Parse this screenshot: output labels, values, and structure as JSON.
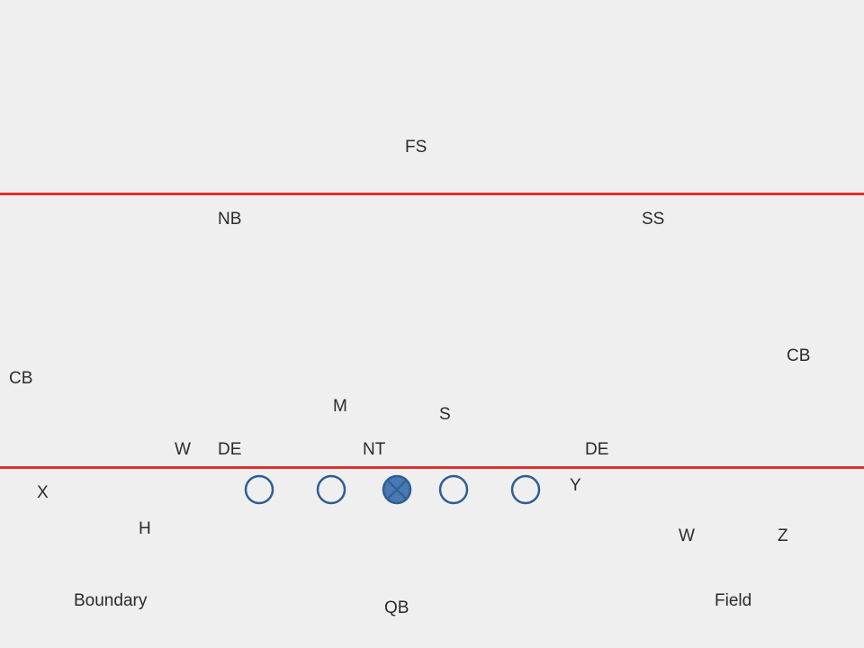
{
  "colors": {
    "background": "#efefef",
    "boundary_line": "#e03030",
    "player_stroke": "#2d5e94",
    "center_fill": "#4a78b0",
    "text": "#2b2b2b"
  },
  "defense": {
    "fs": "FS",
    "nb": "NB",
    "ss": "SS",
    "cb_left": "CB",
    "cb_right": "CB",
    "m": "M",
    "s": "S",
    "w": "W",
    "de_left": "DE",
    "nt": "NT",
    "de_right": "DE"
  },
  "offense": {
    "x": "X",
    "h": "H",
    "y": "Y",
    "w": "W",
    "z": "Z",
    "qb": "QB",
    "linemen": [
      {
        "role": "tackle"
      },
      {
        "role": "guard"
      },
      {
        "role": "center"
      },
      {
        "role": "guard"
      },
      {
        "role": "tackle"
      }
    ]
  },
  "sides": {
    "boundary": "Boundary",
    "field": "Field"
  }
}
